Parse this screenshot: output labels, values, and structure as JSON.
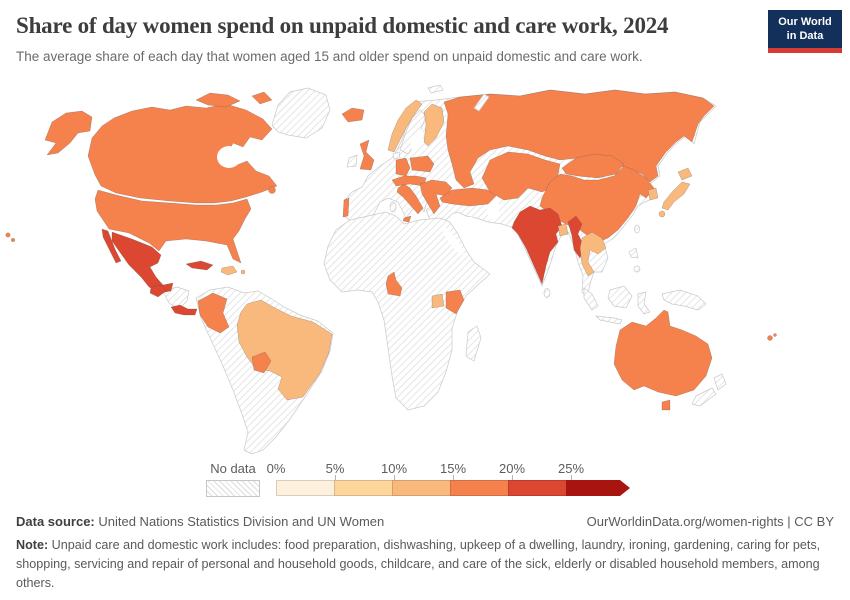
{
  "header": {
    "title": "Share of day women spend on unpaid domestic and care work, 2024",
    "subtitle": "The average share of each day that women aged 15 and older spend on unpaid domestic and care work.",
    "logo": {
      "line1": "Our World",
      "line2": "in Data",
      "bg_color": "#13305a",
      "accent_color": "#d73a34"
    }
  },
  "legend": {
    "no_data_label": "No data",
    "tick_labels": [
      "0%",
      "5%",
      "10%",
      "15%",
      "20%",
      "25%"
    ],
    "bin_ranges": [
      "0-5%",
      "5-10%",
      "10-15%",
      "15-20%",
      "20-25%",
      "25%+"
    ],
    "bin_colors": [
      "#fdf0dc",
      "#fcd69b",
      "#fab97c",
      "#f5814d",
      "#dc4732",
      "#a81410"
    ]
  },
  "footer": {
    "source_label": "Data source:",
    "source_text": " United Nations Statistics Division and UN Women",
    "link_text": "OurWorldinData.org/women-rights | CC BY",
    "note_label": "Note:",
    "note_text": " Unpaid care and domestic work includes: food preparation, dishwashing, upkeep of a dwelling, laundry, ironing, gardening, caring for pets, shopping, servicing and repair of personal and household goods, childcare, and care of the sick, elderly or disabled household members, among others."
  },
  "chart_data": {
    "type": "heatmap",
    "subtype": "choropleth-world-map",
    "title": "Share of day women spend on unpaid domestic and care work, 2024",
    "unit": "% of each day",
    "legend_bins": [
      {
        "range": "0-5%",
        "color": "#fdf0dc"
      },
      {
        "range": "5-10%",
        "color": "#fcd69b"
      },
      {
        "range": "10-15%",
        "color": "#fab97c"
      },
      {
        "range": "15-20%",
        "color": "#f5814d"
      },
      {
        "range": "20-25%",
        "color": "#dc4732"
      },
      {
        "range": "25%+",
        "color": "#a81410"
      }
    ],
    "no_data_style": "diagonal-hatch",
    "countries": {
      "usa": {
        "label": "United States",
        "bin": "15-20%"
      },
      "canada": {
        "label": "Canada",
        "bin": "15-20%"
      },
      "mexico": {
        "label": "Mexico",
        "bin": "20-25%"
      },
      "guatemala": {
        "label": "Guatemala",
        "bin": "20-25%"
      },
      "costa-rica-panama": {
        "label": "Costa Rica & Panama",
        "bin": "20-25%"
      },
      "cuba": {
        "label": "Cuba",
        "bin": "20-25%"
      },
      "dominican-republic": {
        "label": "Dominican Republic",
        "bin": "10-15%"
      },
      "puerto-rico": {
        "label": "Puerto Rico",
        "bin": "10-15%"
      },
      "colombia": {
        "label": "Colombia",
        "bin": "15-20%"
      },
      "brazil": {
        "label": "Brazil",
        "bin": "10-15%"
      },
      "paraguay": {
        "label": "Paraguay",
        "bin": "15-20%"
      },
      "iceland": {
        "label": "Iceland",
        "bin": "15-20%"
      },
      "united-kingdom": {
        "label": "United Kingdom",
        "bin": "15-20%"
      },
      "portugal": {
        "label": "Portugal",
        "bin": "15-20%"
      },
      "norway": {
        "label": "Norway",
        "bin": "10-15%"
      },
      "finland": {
        "label": "Finland",
        "bin": "10-15%"
      },
      "germany": {
        "label": "Germany",
        "bin": "15-20%"
      },
      "poland": {
        "label": "Poland",
        "bin": "15-20%"
      },
      "central-europe": {
        "label": "Austria & Switzerland",
        "bin": "15-20%"
      },
      "italy": {
        "label": "Italy",
        "bin": "15-20%"
      },
      "balkans": {
        "label": "Balkans (Serbia, Bulgaria, Greece)",
        "bin": "15-20%"
      },
      "turkey": {
        "label": "Turkey",
        "bin": "15-20%"
      },
      "russia": {
        "label": "Russia",
        "bin": "15-20%"
      },
      "kazakhstan": {
        "label": "Kazakhstan",
        "bin": "15-20%"
      },
      "mongolia": {
        "label": "Mongolia",
        "bin": "15-20%"
      },
      "china": {
        "label": "China",
        "bin": "15-20%"
      },
      "india": {
        "label": "India",
        "bin": "20-25%"
      },
      "bangladesh": {
        "label": "Bangladesh",
        "bin": "10-15%"
      },
      "myanmar": {
        "label": "Myanmar",
        "bin": "20-25%"
      },
      "thailand-laos-cambodia": {
        "label": "Thailand, Laos & Cambodia",
        "bin": "10-15%"
      },
      "south-korea": {
        "label": "South Korea",
        "bin": "10-15%"
      },
      "japan": {
        "label": "Japan",
        "bin": "10-15%"
      },
      "cameroon": {
        "label": "Cameroon",
        "bin": "15-20%"
      },
      "uganda": {
        "label": "Uganda",
        "bin": "10-15%"
      },
      "kenya": {
        "label": "Kenya",
        "bin": "15-20%"
      },
      "australia": {
        "label": "Australia",
        "bin": "15-20%"
      },
      "fiji": {
        "label": "Fiji",
        "bin": "15-20%"
      }
    }
  }
}
